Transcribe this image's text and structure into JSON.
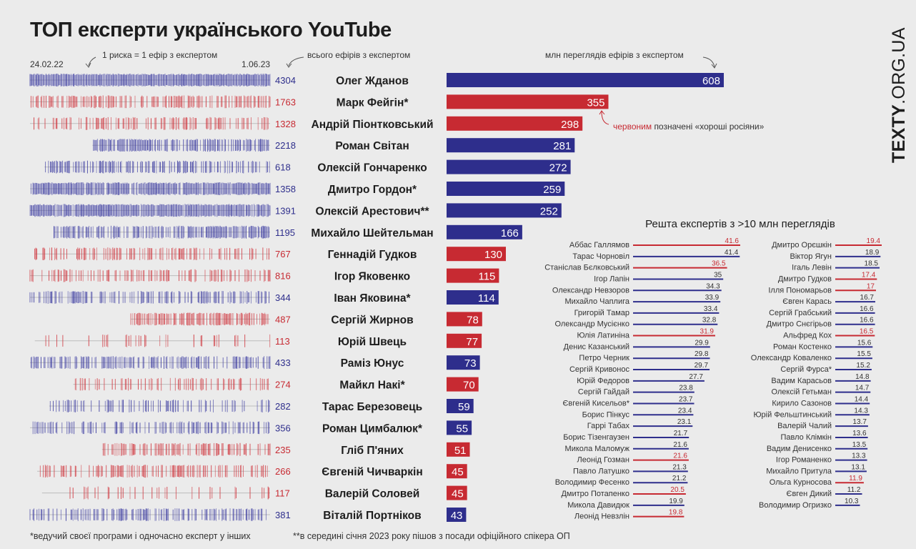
{
  "title": "ТОП експерти українського YouTube",
  "annotations": {
    "date_start": "24.02.22",
    "date_end": "1.06.23",
    "tick_note": "1 риска = 1 ефір з експертом",
    "total_note": "всього ефірів з експертом",
    "views_note": "млн переглядів ефірів з експертом",
    "red_note_word": "червоним",
    "red_note_rest": "позначені «хороші росіяни»"
  },
  "brand": {
    "bold": "TEXTY",
    "thin": ".ORG.UA"
  },
  "footnotes": {
    "star": "*ведучий своєї програми і одночасно експерт у інших",
    "double_star": "**в середині січня 2023 року пішов з посади офіційного спікера ОП"
  },
  "colors": {
    "blue": "#2e2e8c",
    "red": "#c72a32",
    "blue_tick": "#3a3aa0",
    "red_tick": "#d0343c",
    "background": "#ebebeb"
  },
  "chart_data": [
    {
      "type": "bar",
      "orientation": "horizontal",
      "ylabel": "млн переглядів ефірів з експертом",
      "xlim": [
        0,
        608
      ],
      "grid": false,
      "series": [
        {
          "label": "Олег Жданов",
          "value": 608,
          "appearances": 4304,
          "color": "blue",
          "span": [
            0.0,
            1.0
          ],
          "density": 1.0
        },
        {
          "label": "Марк Фейгін*",
          "value": 355,
          "appearances": 1763,
          "color": "red",
          "span": [
            0.0,
            1.0
          ],
          "density": 0.55
        },
        {
          "label": "Андрій Піонтковський",
          "value": 298,
          "appearances": 1328,
          "color": "red",
          "span": [
            0.0,
            1.0
          ],
          "density": 0.42
        },
        {
          "label": "Роман Світан",
          "value": 281,
          "appearances": 2218,
          "color": "blue",
          "span": [
            0.26,
            1.0
          ],
          "density": 0.8
        },
        {
          "label": "Олексій Гончаренко",
          "value": 272,
          "appearances": 618,
          "color": "blue",
          "span": [
            0.06,
            1.0
          ],
          "density": 0.55
        },
        {
          "label": "Дмитро Гордон*",
          "value": 259,
          "appearances": 1358,
          "color": "blue",
          "span": [
            0.0,
            1.0
          ],
          "density": 0.95
        },
        {
          "label": "Олексій Арестович**",
          "value": 252,
          "appearances": 1391,
          "color": "blue",
          "span": [
            0.0,
            1.0
          ],
          "density": 0.95
        },
        {
          "label": "Михайло Шейтельман",
          "value": 166,
          "appearances": 1195,
          "color": "blue",
          "span": [
            0.1,
            1.0
          ],
          "density": 0.7
        },
        {
          "label": "Геннадій Гудков",
          "value": 130,
          "appearances": 767,
          "color": "red",
          "span": [
            0.02,
            1.0
          ],
          "density": 0.4
        },
        {
          "label": "Ігор Яковенко",
          "value": 115,
          "appearances": 816,
          "color": "red",
          "span": [
            0.0,
            1.0
          ],
          "density": 0.45
        },
        {
          "label": "Іван Яковина*",
          "value": 114,
          "appearances": 344,
          "color": "blue",
          "span": [
            0.0,
            1.0
          ],
          "density": 0.45
        },
        {
          "label": "Сергій Жирнов",
          "value": 78,
          "appearances": 487,
          "color": "red",
          "span": [
            0.42,
            1.0
          ],
          "density": 0.6
        },
        {
          "label": "Юрій Швець",
          "value": 77,
          "appearances": 113,
          "color": "red",
          "span": [
            0.02,
            1.0
          ],
          "density": 0.12
        },
        {
          "label": "Раміз Юнус",
          "value": 73,
          "appearances": 433,
          "color": "blue",
          "span": [
            0.0,
            1.0
          ],
          "density": 0.5
        },
        {
          "label": "Майкл Накі*",
          "value": 70,
          "appearances": 274,
          "color": "red",
          "span": [
            0.18,
            1.0
          ],
          "density": 0.35
        },
        {
          "label": "Тарас Березовець",
          "value": 59,
          "appearances": 282,
          "color": "blue",
          "span": [
            0.08,
            1.0
          ],
          "density": 0.35
        },
        {
          "label": "Роман Цимбалюк*",
          "value": 55,
          "appearances": 356,
          "color": "blue",
          "span": [
            0.0,
            1.0
          ],
          "density": 0.45
        },
        {
          "label": "Гліб П'яних",
          "value": 51,
          "appearances": 235,
          "color": "red",
          "span": [
            0.3,
            1.0
          ],
          "density": 0.45
        },
        {
          "label": "Євгеній Чичваркін",
          "value": 45,
          "appearances": 266,
          "color": "red",
          "span": [
            0.03,
            1.0
          ],
          "density": 0.4
        },
        {
          "label": "Валерій Соловей",
          "value": 45,
          "appearances": 117,
          "color": "red",
          "span": [
            0.05,
            1.0
          ],
          "density": 0.15
        },
        {
          "label": "Віталій Портніков",
          "value": 43,
          "appearances": 381,
          "color": "blue",
          "span": [
            0.0,
            1.0
          ],
          "density": 0.5
        }
      ]
    },
    {
      "type": "bar",
      "orientation": "horizontal",
      "title": "Решта експертів з >10 млн переглядів",
      "grid": false,
      "columns": [
        [
          {
            "label": "Аббас Галлямов",
            "value": 41.6,
            "color": "red"
          },
          {
            "label": "Тарас Чорновіл",
            "value": 41.4,
            "color": "blue"
          },
          {
            "label": "Станіслав Бєлковський",
            "value": 36.5,
            "color": "red"
          },
          {
            "label": "Ігор Лапін",
            "value": 35,
            "color": "blue"
          },
          {
            "label": "Олександр Невзоров",
            "value": 34.3,
            "color": "blue"
          },
          {
            "label": "Михайло Чаплига",
            "value": 33.9,
            "color": "blue"
          },
          {
            "label": "Григорій Тамар",
            "value": 33.4,
            "color": "blue"
          },
          {
            "label": "Олександр Мусієнко",
            "value": 32.8,
            "color": "blue"
          },
          {
            "label": "Юлія Латиніна",
            "value": 31.9,
            "color": "red"
          },
          {
            "label": "Денис Казанський",
            "value": 29.9,
            "color": "blue"
          },
          {
            "label": "Петро Черник",
            "value": 29.8,
            "color": "blue"
          },
          {
            "label": "Сергій Кривонос",
            "value": 29.7,
            "color": "blue"
          },
          {
            "label": "Юрій Федоров",
            "value": 27.7,
            "color": "blue"
          },
          {
            "label": "Сергій Гайдай",
            "value": 23.8,
            "color": "blue"
          },
          {
            "label": "Євгеній Кисельов*",
            "value": 23.7,
            "color": "blue"
          },
          {
            "label": "Борис Пінкус",
            "value": 23.4,
            "color": "blue"
          },
          {
            "label": "Гаррі Табах",
            "value": 23.1,
            "color": "blue"
          },
          {
            "label": "Борис Тізенгаузен",
            "value": 21.7,
            "color": "blue"
          },
          {
            "label": "Микола Маломуж",
            "value": 21.6,
            "color": "blue"
          },
          {
            "label": "Леонід Гозман",
            "value": 21.6,
            "color": "red"
          },
          {
            "label": "Павло Латушко",
            "value": 21.3,
            "color": "blue"
          },
          {
            "label": "Володимир Фесенко",
            "value": 21.2,
            "color": "blue"
          },
          {
            "label": "Дмитро Потапенко",
            "value": 20.5,
            "color": "red"
          },
          {
            "label": "Микола Давидюк",
            "value": 19.9,
            "color": "blue"
          },
          {
            "label": "Леонід Невзлін",
            "value": 19.8,
            "color": "red"
          }
        ],
        [
          {
            "label": "Дмитро Орєшкін",
            "value": 19.4,
            "color": "red"
          },
          {
            "label": "Віктор Ягун",
            "value": 18.9,
            "color": "blue"
          },
          {
            "label": "Ігаль Левін",
            "value": 18.5,
            "color": "blue"
          },
          {
            "label": "Дмитро Гудков",
            "value": 17.4,
            "color": "red"
          },
          {
            "label": "Ілля Пономарьов",
            "value": 17,
            "color": "red"
          },
          {
            "label": "Євген Карась",
            "value": 16.7,
            "color": "blue"
          },
          {
            "label": "Сергій Грабський",
            "value": 16.6,
            "color": "blue"
          },
          {
            "label": "Дмитро Снєгірьов",
            "value": 16.6,
            "color": "blue"
          },
          {
            "label": "Альфред Кох",
            "value": 16.5,
            "color": "red"
          },
          {
            "label": "Роман Костенко",
            "value": 15.6,
            "color": "blue"
          },
          {
            "label": "Олександр Коваленко",
            "value": 15.5,
            "color": "blue"
          },
          {
            "label": "Сергій Фурса*",
            "value": 15.2,
            "color": "blue"
          },
          {
            "label": "Вадим Карасьов",
            "value": 14.8,
            "color": "blue"
          },
          {
            "label": "Олексій Гетьман",
            "value": 14.7,
            "color": "blue"
          },
          {
            "label": "Кирило Сазонов",
            "value": 14.4,
            "color": "blue"
          },
          {
            "label": "Юрій Фельштинський",
            "value": 14.3,
            "color": "blue"
          },
          {
            "label": "Валерій Чалий",
            "value": 13.7,
            "color": "blue"
          },
          {
            "label": "Павло Клімкін",
            "value": 13.6,
            "color": "blue"
          },
          {
            "label": "Вадим Денисенко",
            "value": 13.5,
            "color": "blue"
          },
          {
            "label": "Ігор Романенко",
            "value": 13.3,
            "color": "blue"
          },
          {
            "label": "Михайло Притула",
            "value": 13.1,
            "color": "blue"
          },
          {
            "label": "Ольга Курносова",
            "value": 11.9,
            "color": "red"
          },
          {
            "label": "Євген Дикий",
            "value": 11.2,
            "color": "blue"
          },
          {
            "label": "Володимир Огризко",
            "value": 10.3,
            "color": "blue"
          }
        ]
      ]
    }
  ]
}
